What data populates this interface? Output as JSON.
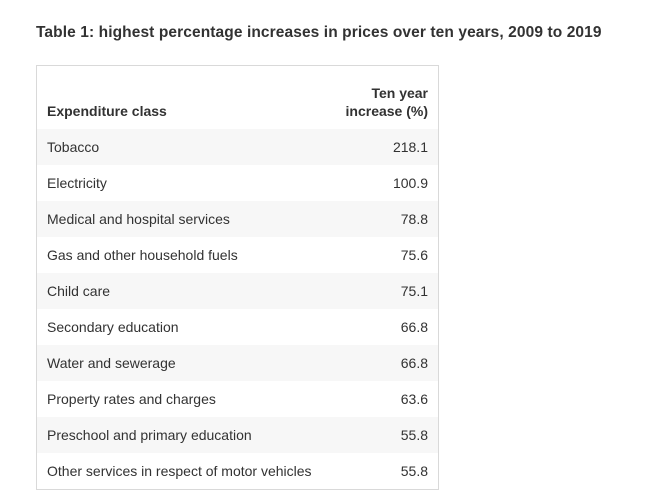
{
  "caption": "Table 1: highest percentage increases in prices over ten years, 2009 to 2019",
  "table": {
    "headers": {
      "class": "Expenditure class",
      "value_line1": "Ten year",
      "value_line2": "increase (%)"
    },
    "rows": [
      {
        "class": "Tobacco",
        "value": "218.1"
      },
      {
        "class": "Electricity",
        "value": "100.9"
      },
      {
        "class": "Medical and hospital services",
        "value": "78.8"
      },
      {
        "class": "Gas and other household fuels",
        "value": "75.6"
      },
      {
        "class": "Child care",
        "value": "75.1"
      },
      {
        "class": "Secondary education",
        "value": "66.8"
      },
      {
        "class": "Water and sewerage",
        "value": "66.8"
      },
      {
        "class": "Property rates and charges",
        "value": "63.6"
      },
      {
        "class": "Preschool and primary education",
        "value": "55.8"
      },
      {
        "class": "Other services in respect of motor vehicles",
        "value": "55.8"
      }
    ]
  }
}
